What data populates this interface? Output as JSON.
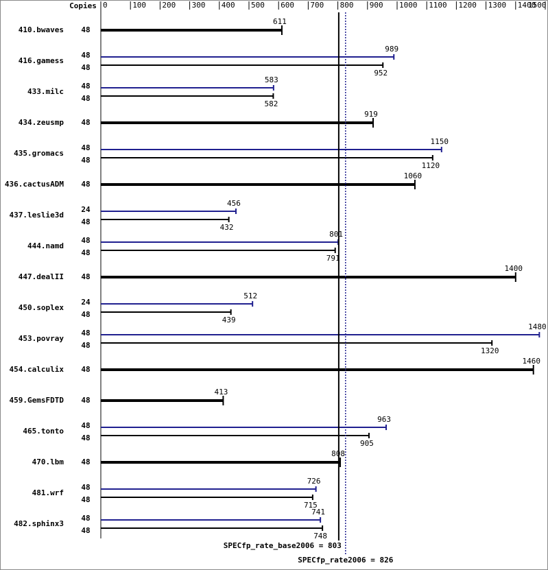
{
  "chart_data": {
    "type": "bar",
    "copies_header": "Copies",
    "xlim": [
      0,
      1500
    ],
    "xticks": [
      0,
      100,
      200,
      300,
      400,
      500,
      600,
      700,
      800,
      900,
      1000,
      1100,
      1200,
      1300,
      1400,
      1500
    ],
    "categories": [
      "410.bwaves",
      "416.gamess",
      "433.milc",
      "434.zeusmp",
      "435.gromacs",
      "436.cactusADM",
      "437.leslie3d",
      "444.namd",
      "447.dealII",
      "450.soplex",
      "453.povray",
      "454.calculix",
      "459.GemsFDTD",
      "465.tonto",
      "470.lbm",
      "481.wrf",
      "482.sphinx3"
    ],
    "series": [
      {
        "color": "#000000",
        "copies": [
          48,
          48,
          48,
          48,
          48,
          48,
          48,
          48,
          48,
          48,
          48,
          48,
          48,
          48,
          48,
          48,
          48
        ],
        "values": [
          611,
          952,
          582,
          919,
          1120,
          1060,
          432,
          791,
          1400,
          439,
          1320,
          1460,
          413,
          905,
          808,
          715,
          748
        ]
      },
      {
        "color": "#1f1f8f",
        "copies": [
          null,
          48,
          48,
          null,
          48,
          null,
          24,
          48,
          null,
          24,
          48,
          null,
          null,
          48,
          null,
          48,
          48
        ],
        "values": [
          null,
          989,
          583,
          null,
          1150,
          null,
          456,
          801,
          null,
          512,
          1480,
          null,
          null,
          963,
          null,
          726,
          741
        ]
      }
    ],
    "reference_lines": [
      {
        "value": 803,
        "label": "SPECfp_rate_base2006 = 803",
        "color": "#000000",
        "style": "solid"
      },
      {
        "value": 826,
        "label": "SPECfp_rate2006 = 826",
        "color": "#1f1f8f",
        "style": "dotted"
      }
    ]
  }
}
